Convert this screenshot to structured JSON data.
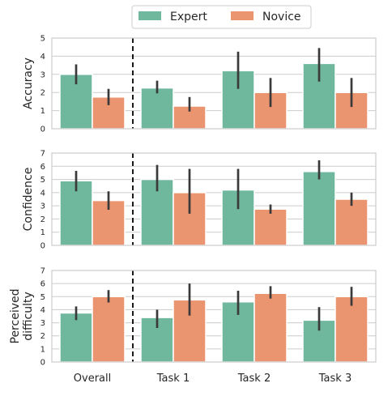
{
  "legend": {
    "placement": "top-center",
    "items": [
      {
        "label": "Expert",
        "color": "#6fb89e"
      },
      {
        "label": "Novice",
        "color": "#eb9470"
      }
    ]
  },
  "chart_data": [
    {
      "type": "bar",
      "ylabel": "Accuracy",
      "ylim": [
        0,
        5
      ],
      "yticks": [
        0,
        1,
        2,
        3,
        4,
        5
      ],
      "categories": [
        "Overall",
        "Task 1",
        "Task 2",
        "Task 3"
      ],
      "divider_after_category": 0,
      "grid": true,
      "series": [
        {
          "name": "Expert",
          "values": [
            3.0,
            2.25,
            3.2,
            3.6
          ],
          "err_low": [
            2.45,
            1.95,
            2.2,
            2.6
          ],
          "err_high": [
            3.55,
            2.65,
            4.25,
            4.45
          ]
        },
        {
          "name": "Novice",
          "values": [
            1.75,
            1.25,
            2.0,
            2.0
          ],
          "err_low": [
            1.3,
            0.95,
            1.2,
            1.2
          ],
          "err_high": [
            2.2,
            1.75,
            2.8,
            2.8
          ]
        }
      ]
    },
    {
      "type": "bar",
      "ylabel": "Confidence",
      "ylim": [
        0,
        7
      ],
      "yticks": [
        0,
        1,
        2,
        3,
        4,
        5,
        6,
        7
      ],
      "categories": [
        "Overall",
        "Task 1",
        "Task 2",
        "Task 3"
      ],
      "divider_after_category": 0,
      "grid": true,
      "series": [
        {
          "name": "Expert",
          "values": [
            4.9,
            5.0,
            4.2,
            5.6
          ],
          "err_low": [
            4.1,
            4.1,
            2.75,
            5.0
          ],
          "err_high": [
            5.65,
            6.1,
            5.8,
            6.45
          ]
        },
        {
          "name": "Novice",
          "values": [
            3.4,
            4.0,
            2.75,
            3.5
          ],
          "err_low": [
            2.7,
            2.4,
            2.4,
            3.0
          ],
          "err_high": [
            4.1,
            5.8,
            3.1,
            4.0
          ]
        }
      ]
    },
    {
      "type": "bar",
      "ylabel": "Perceived difficulty",
      "ylabel_lines": [
        "Perceived",
        "difficulty"
      ],
      "ylim": [
        0,
        7
      ],
      "yticks": [
        0,
        1,
        2,
        3,
        4,
        5,
        6,
        7
      ],
      "categories": [
        "Overall",
        "Task 1",
        "Task 2",
        "Task 3"
      ],
      "divider_after_category": 0,
      "grid": true,
      "series": [
        {
          "name": "Expert",
          "values": [
            3.75,
            3.4,
            4.6,
            3.2
          ],
          "err_low": [
            3.2,
            2.6,
            3.6,
            2.4
          ],
          "err_high": [
            4.25,
            4.0,
            5.45,
            4.2
          ]
        },
        {
          "name": "Novice",
          "values": [
            5.0,
            4.75,
            5.25,
            5.0
          ],
          "err_low": [
            4.55,
            3.55,
            4.85,
            4.3
          ],
          "err_high": [
            5.5,
            6.0,
            5.8,
            5.75
          ]
        }
      ]
    }
  ]
}
